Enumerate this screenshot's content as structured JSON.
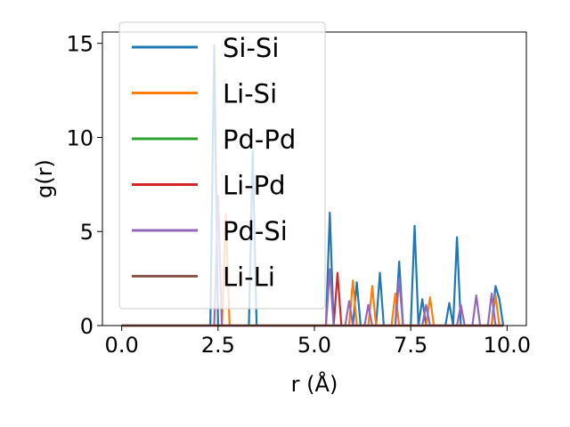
{
  "chart_data": {
    "type": "line",
    "title": "",
    "xlabel": "r (Å)",
    "ylabel": "g(r)",
    "xlim": [
      -0.5,
      10.5
    ],
    "ylim": [
      0,
      15.6
    ],
    "xticks": [
      0.0,
      2.5,
      5.0,
      7.5,
      10.0
    ],
    "xtick_labels": [
      "0.0",
      "2.5",
      "5.0",
      "7.5",
      "10.0"
    ],
    "yticks": [
      0,
      5,
      10,
      15
    ],
    "ytick_labels": [
      "0",
      "5",
      "10",
      "15"
    ],
    "grid": false,
    "legend_position": "top-left",
    "x": [
      0.0,
      0.1,
      0.2,
      0.3,
      0.4,
      0.5,
      0.6,
      0.7,
      0.8,
      0.9,
      1.0,
      1.1,
      1.2,
      1.3,
      1.4,
      1.5,
      1.6,
      1.7,
      1.8,
      1.9,
      2.0,
      2.1,
      2.2,
      2.3,
      2.4,
      2.5,
      2.6,
      2.7,
      2.8,
      2.9,
      3.0,
      3.1,
      3.2,
      3.3,
      3.4,
      3.5,
      3.6,
      3.7,
      3.8,
      3.9,
      4.0,
      4.1,
      4.2,
      4.3,
      4.4,
      4.5,
      4.6,
      4.7,
      4.8,
      4.9,
      5.0,
      5.1,
      5.2,
      5.3,
      5.4,
      5.5,
      5.6,
      5.7,
      5.8,
      5.9,
      6.0,
      6.1,
      6.2,
      6.3,
      6.4,
      6.5,
      6.6,
      6.7,
      6.8,
      6.9,
      7.0,
      7.1,
      7.2,
      7.3,
      7.4,
      7.5,
      7.6,
      7.7,
      7.8,
      7.9,
      8.0,
      8.1,
      8.2,
      8.3,
      8.4,
      8.5,
      8.6,
      8.7,
      8.8,
      8.9,
      9.0,
      9.1,
      9.2,
      9.3,
      9.4,
      9.5,
      9.6,
      9.7,
      9.8,
      9.9
    ],
    "series": [
      {
        "name": "Si-Si",
        "color": "#1f77b4",
        "values": [
          0,
          0,
          0,
          0,
          0,
          0,
          0,
          0,
          0,
          0,
          0,
          0,
          0,
          0,
          0,
          0,
          0,
          0,
          0,
          0,
          0,
          0,
          0,
          0,
          14.9,
          0,
          0,
          0,
          0,
          0,
          0,
          0,
          0,
          0,
          9.3,
          0,
          0,
          0,
          0,
          0,
          0,
          0,
          0,
          0,
          0,
          0,
          0,
          0,
          0,
          0,
          0,
          0,
          0,
          0,
          6.0,
          0,
          0,
          0,
          0,
          0,
          0,
          2.3,
          0,
          0,
          0,
          0,
          0,
          2.8,
          0,
          0,
          0,
          0,
          3.4,
          0,
          0,
          0,
          5.3,
          0,
          1.4,
          0,
          0,
          0,
          0,
          0,
          0,
          1.2,
          0,
          4.7,
          0,
          0,
          0,
          0,
          0,
          0,
          0,
          0,
          0,
          2.1,
          1.4,
          0
        ]
      },
      {
        "name": "Li-Si",
        "color": "#ff7f0e",
        "values": [
          0,
          0,
          0,
          0,
          0,
          0,
          0,
          0,
          0,
          0,
          0,
          0,
          0,
          0,
          0,
          0,
          0,
          0,
          0,
          0,
          0,
          0,
          0,
          0,
          0,
          0,
          0,
          5.9,
          0,
          0,
          0,
          0,
          0,
          0,
          0,
          0,
          0,
          0,
          0,
          0,
          0,
          0,
          0,
          0,
          0,
          0,
          0,
          0,
          0,
          0,
          0,
          0,
          0,
          0,
          0,
          0,
          0,
          0,
          0,
          0,
          2.4,
          0,
          0,
          0,
          0,
          2.1,
          0,
          0,
          0,
          0,
          0,
          1.7,
          0,
          0,
          0,
          0,
          0,
          0,
          0,
          0,
          1.5,
          0,
          0,
          0,
          0,
          0,
          0,
          0,
          0,
          0,
          0,
          0,
          0,
          0,
          0,
          0,
          0,
          1.6,
          0,
          0
        ]
      },
      {
        "name": "Pd-Pd",
        "color": "#2ca02c",
        "values": [
          0,
          0,
          0,
          0,
          0,
          0,
          0,
          0,
          0,
          0,
          0,
          0,
          0,
          0,
          0,
          0,
          0,
          0,
          0,
          0,
          0,
          0,
          0,
          0,
          0,
          0,
          0,
          0,
          0,
          0,
          0,
          0,
          0,
          0,
          0,
          0,
          0,
          0,
          0,
          0,
          0,
          0,
          0,
          0,
          0,
          0,
          0,
          0,
          0,
          0,
          0,
          0,
          0,
          0,
          0,
          0,
          0,
          0,
          0,
          0,
          0,
          0,
          0,
          0,
          0,
          0,
          0,
          0,
          0,
          0,
          0,
          0,
          0,
          0,
          0,
          0,
          0,
          0,
          0,
          0,
          0,
          0,
          0,
          0,
          0,
          0,
          0,
          0,
          0,
          0,
          0,
          0,
          0,
          0,
          0,
          0,
          0,
          0,
          0,
          0
        ]
      },
      {
        "name": "Li-Pd",
        "color": "#d62728",
        "values": [
          0,
          0,
          0,
          0,
          0,
          0,
          0,
          0,
          0,
          0,
          0,
          0,
          0,
          0,
          0,
          0,
          0,
          0,
          0,
          0,
          0,
          0,
          0,
          0,
          0,
          0,
          0,
          0,
          0,
          0,
          0,
          0,
          0,
          0,
          0,
          0,
          0,
          0,
          0,
          0,
          0,
          0,
          0,
          0,
          0,
          0,
          0,
          0,
          0,
          0,
          0,
          0,
          0,
          0,
          0,
          0,
          2.8,
          0,
          0,
          0,
          0,
          0,
          0,
          0,
          0,
          0,
          0,
          0,
          0,
          0,
          0,
          0,
          0,
          0,
          0,
          0,
          0,
          0,
          0,
          0,
          0,
          0,
          0,
          0,
          0,
          0,
          0,
          0,
          0,
          0,
          0,
          0,
          0,
          0,
          0,
          0,
          0,
          0,
          0,
          0
        ]
      },
      {
        "name": "Pd-Si",
        "color": "#9467bd",
        "values": [
          0,
          0,
          0,
          0,
          0,
          0,
          0,
          0,
          0,
          0,
          0,
          0,
          0,
          0,
          0,
          0,
          0,
          0,
          0,
          0,
          0,
          0,
          0,
          0,
          0,
          6.9,
          0,
          0,
          0,
          0,
          0,
          0,
          0,
          0,
          0,
          0,
          0,
          0,
          0,
          0,
          0,
          0,
          0,
          0,
          0,
          0,
          0,
          0,
          0,
          0,
          0,
          0,
          0,
          0,
          3.0,
          0,
          0,
          0,
          0,
          1.3,
          0,
          0,
          0,
          0,
          1.1,
          0,
          0,
          0,
          0,
          0,
          0,
          0,
          2.5,
          0,
          0,
          0,
          0,
          0,
          0,
          1.1,
          0,
          0,
          0,
          0,
          0,
          0,
          0,
          0,
          1.1,
          0,
          0,
          0,
          1.6,
          0,
          0,
          0,
          1.7,
          0,
          0,
          0
        ]
      },
      {
        "name": "Li-Li",
        "color": "#8c564b",
        "values": [
          0,
          0,
          0,
          0,
          0,
          0,
          0,
          0,
          0,
          0,
          0,
          0,
          0,
          0,
          0,
          0,
          0,
          0,
          0,
          0,
          0,
          0,
          0,
          0,
          0,
          0,
          0,
          0,
          0,
          0,
          0,
          0,
          0,
          0,
          0,
          0,
          0,
          0,
          0,
          0,
          0,
          0,
          0,
          0,
          0,
          0,
          0,
          0,
          0,
          0,
          0,
          0,
          0,
          0,
          0,
          0,
          0,
          0,
          0,
          0,
          0,
          0,
          0,
          0,
          0,
          0,
          0,
          0,
          0,
          0,
          0,
          0,
          0,
          0,
          0,
          0,
          0,
          0,
          0,
          0,
          0,
          0,
          0,
          0,
          0,
          0,
          0,
          0,
          0,
          0,
          0,
          0,
          0,
          0,
          0,
          0,
          0,
          0,
          0,
          0
        ]
      }
    ]
  }
}
